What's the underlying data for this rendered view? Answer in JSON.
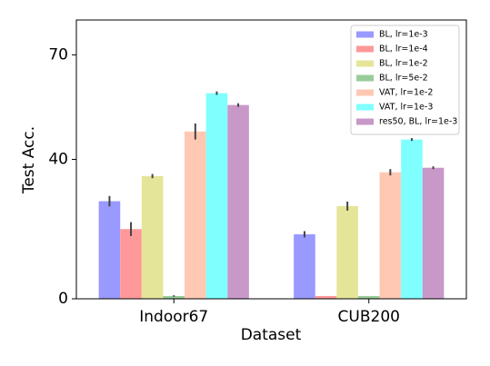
{
  "chart_data": {
    "type": "bar",
    "x_label": "Dataset",
    "y_label": "Test Acc.",
    "categories": [
      "Indoor67",
      "CUB200"
    ],
    "ylim": [
      0,
      80
    ],
    "yticks": [
      0,
      40,
      70
    ],
    "legend": "upper right",
    "series": [
      {
        "name": "BL, lr=1e-3",
        "color": "#9999ff",
        "values": [
          28,
          18.5
        ],
        "errors": [
          1.5,
          0.9
        ]
      },
      {
        "name": "BL, lr=1e-4",
        "color": "#ff9999",
        "values": [
          20,
          0.8
        ],
        "errors": [
          2,
          0
        ]
      },
      {
        "name": "BL, lr=1e-2",
        "color": "#e5e599",
        "values": [
          35.2,
          26.6
        ],
        "errors": [
          0.6,
          1.3
        ]
      },
      {
        "name": "BL, lr=5e-2",
        "color": "#99cc99",
        "values": [
          0.8,
          0.8
        ],
        "errors": [
          0.2,
          0
        ]
      },
      {
        "name": "VAT, lr=1e-2",
        "color": "#ffc8b3",
        "values": [
          48,
          36.3
        ],
        "errors": [
          2.3,
          0.9
        ]
      },
      {
        "name": "VAT, lr=1e-3",
        "color": "#80ffff",
        "values": [
          59,
          45.7
        ],
        "errors": [
          0.5,
          0.4
        ]
      },
      {
        "name": "res50, BL, lr=1e-3",
        "color": "#c898c8",
        "values": [
          55.6,
          37.6
        ],
        "errors": [
          0.5,
          0.4
        ]
      }
    ]
  }
}
